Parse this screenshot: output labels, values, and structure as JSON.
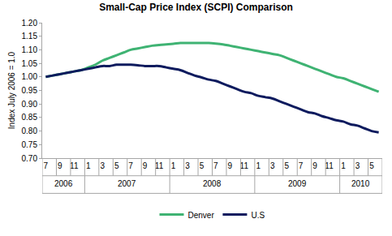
{
  "chart_data": {
    "type": "line",
    "title": "Small-Cap Price Index (SCPI) Comparison",
    "y_label": "Index July 2006 = 1.0",
    "categories": [
      "7",
      null,
      "9",
      null,
      "11",
      null,
      "1",
      null,
      "3",
      null,
      "5",
      null,
      "7",
      null,
      "9",
      null,
      "11",
      null,
      "1",
      null,
      "3",
      null,
      "5",
      null,
      "7",
      null,
      "9",
      null,
      "11",
      null,
      "1",
      null,
      "3",
      null,
      "5",
      null,
      "7",
      null,
      "9",
      null,
      "11",
      null,
      "1",
      null,
      "3",
      null,
      "5",
      null
    ],
    "years": [
      "2006",
      "2006",
      "2006",
      "2006",
      "2006",
      "2006",
      "2007",
      "2007",
      "2007",
      "2007",
      "2007",
      "2007",
      "2007",
      "2007",
      "2007",
      "2007",
      "2007",
      "2007",
      "2008",
      "2008",
      "2008",
      "2008",
      "2008",
      "2008",
      "2008",
      "2008",
      "2008",
      "2008",
      "2008",
      "2008",
      "2009",
      "2009",
      "2009",
      "2009",
      "2009",
      "2009",
      "2009",
      "2009",
      "2009",
      "2009",
      "2009",
      "2009",
      "2010",
      "2010",
      "2010",
      "2010",
      "2010",
      "2010"
    ],
    "series": [
      {
        "name": "Denver",
        "color": "#3fb373",
        "values": [
          1.0,
          1.005,
          1.01,
          1.015,
          1.02,
          1.025,
          1.035,
          1.045,
          1.06,
          1.07,
          1.08,
          1.09,
          1.1,
          1.105,
          1.11,
          1.115,
          1.118,
          1.12,
          1.122,
          1.125,
          1.125,
          1.125,
          1.125,
          1.125,
          1.123,
          1.12,
          1.115,
          1.11,
          1.105,
          1.1,
          1.095,
          1.09,
          1.085,
          1.08,
          1.07,
          1.06,
          1.05,
          1.04,
          1.03,
          1.02,
          1.01,
          1.0,
          0.995,
          0.985,
          0.975,
          0.965,
          0.955,
          0.945
        ]
      },
      {
        "name": "U.S",
        "color": "#0d1b5e",
        "values": [
          1.0,
          1.005,
          1.01,
          1.015,
          1.02,
          1.025,
          1.03,
          1.035,
          1.04,
          1.04,
          1.045,
          1.045,
          1.045,
          1.043,
          1.04,
          1.04,
          1.04,
          1.035,
          1.03,
          1.025,
          1.015,
          1.005,
          0.998,
          0.99,
          0.985,
          0.975,
          0.965,
          0.955,
          0.945,
          0.94,
          0.93,
          0.925,
          0.92,
          0.91,
          0.9,
          0.89,
          0.88,
          0.87,
          0.865,
          0.855,
          0.848,
          0.84,
          0.835,
          0.825,
          0.82,
          0.81,
          0.8,
          0.795
        ]
      }
    ],
    "ylim": [
      0.7,
      1.2
    ],
    "yticks": [
      {
        "value": 0.7,
        "label": "0.70"
      },
      0.75,
      {
        "value": 0.8,
        "label": "0.80"
      },
      0.85,
      {
        "value": 0.9,
        "label": "0.90"
      },
      0.95,
      {
        "value": 1.0,
        "label": "1.00"
      },
      1.05,
      {
        "value": 1.1,
        "label": "1.10"
      },
      1.15,
      {
        "value": 1.2,
        "label": "1.20"
      }
    ],
    "grid": false,
    "legend": "bottom"
  }
}
